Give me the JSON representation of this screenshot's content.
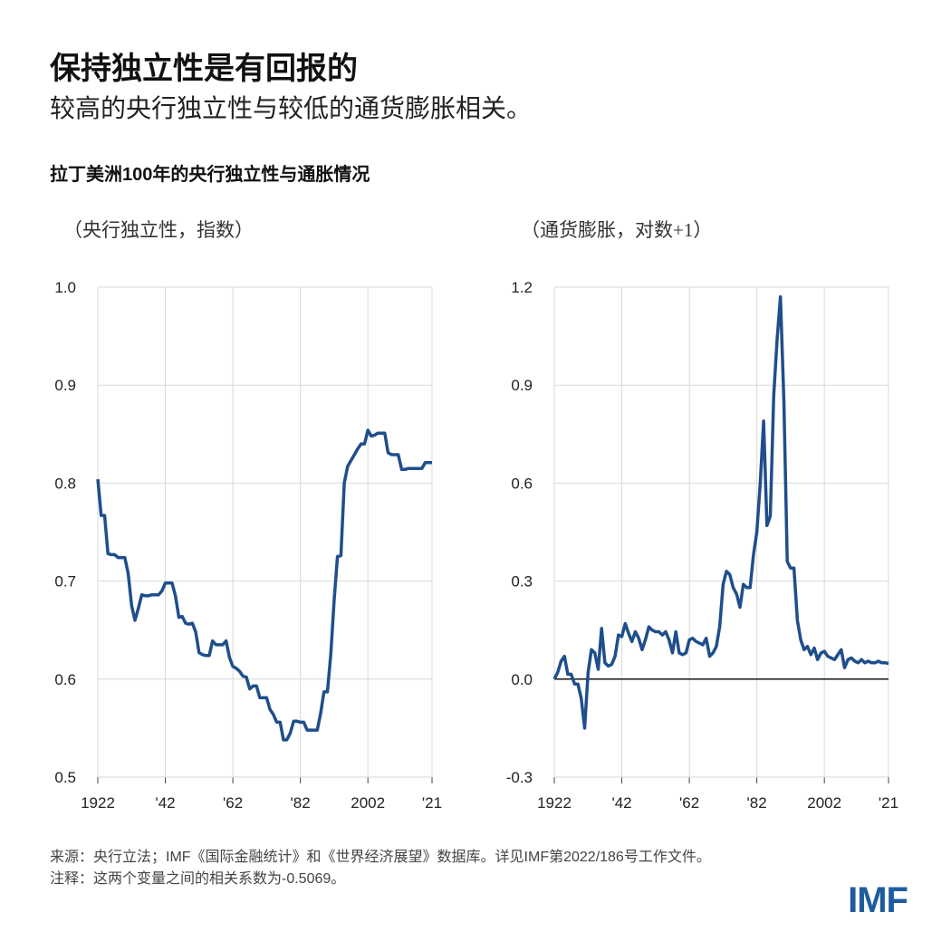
{
  "header": {
    "title": "保持独立性是有回报的",
    "subtitle": "较高的央行独立性与较低的通货膨胀相关。"
  },
  "footer": {
    "source": "来源：央行立法；IMF《国际金融统计》和《世界经济展望》数据库。详见IMF第2022/186号工作文件。",
    "note": "注释：这两个变量之间的相关系数为-0.5069。"
  },
  "logo": "IMF",
  "chart_title": "拉丁美洲100年的央行独立性与通胀情况",
  "colors": {
    "line": "#1f4e8c",
    "grid": "#d9d9d9",
    "zero_line": "#000000"
  },
  "chart_data": [
    {
      "type": "line",
      "ylabel": "（央行独立性，指数）",
      "ylim": [
        0.5,
        1.0
      ],
      "yticks": [
        "1.0",
        "0.9",
        "0.8",
        "0.7",
        "0.6",
        "0.5"
      ],
      "ytick_values": [
        1.0,
        0.9,
        0.8,
        0.7,
        0.6,
        0.5
      ],
      "xlim": [
        1922,
        2021
      ],
      "xticks": [
        "1922",
        "'42",
        "'62",
        "'82",
        "2002",
        "'21"
      ],
      "xtick_values": [
        1922,
        1942,
        1962,
        1982,
        2002,
        2021
      ],
      "grid": true,
      "x_start": 1922,
      "values": [
        0.804,
        0.767,
        0.767,
        0.728,
        0.727,
        0.727,
        0.724,
        0.724,
        0.724,
        0.708,
        0.675,
        0.66,
        0.672,
        0.686,
        0.685,
        0.685,
        0.686,
        0.686,
        0.686,
        0.69,
        0.698,
        0.698,
        0.698,
        0.685,
        0.663,
        0.664,
        0.657,
        0.656,
        0.657,
        0.648,
        0.627,
        0.625,
        0.624,
        0.624,
        0.639,
        0.635,
        0.635,
        0.635,
        0.639,
        0.622,
        0.613,
        0.611,
        0.608,
        0.603,
        0.602,
        0.59,
        0.593,
        0.593,
        0.581,
        0.581,
        0.581,
        0.569,
        0.564,
        0.556,
        0.556,
        0.538,
        0.538,
        0.545,
        0.557,
        0.557,
        0.556,
        0.556,
        0.548,
        0.548,
        0.548,
        0.548,
        0.565,
        0.587,
        0.587,
        0.625,
        0.68,
        0.725,
        0.726,
        0.8,
        0.817,
        0.823,
        0.829,
        0.835,
        0.84,
        0.84,
        0.854,
        0.848,
        0.849,
        0.851,
        0.851,
        0.851,
        0.831,
        0.829,
        0.829,
        0.829,
        0.814,
        0.814,
        0.815,
        0.815,
        0.815,
        0.815,
        0.815,
        0.821,
        0.821,
        0.821
      ]
    },
    {
      "type": "line",
      "ylabel": "（通货膨胀，对数+1）",
      "ylim": [
        -0.3,
        1.2
      ],
      "yticks": [
        "1.2",
        "0.9",
        "0.6",
        "0.3",
        "0.0",
        "-0.3"
      ],
      "ytick_values": [
        1.2,
        0.9,
        0.6,
        0.3,
        0.0,
        -0.3
      ],
      "xlim": [
        1922,
        2021
      ],
      "xticks": [
        "1922",
        "'42",
        "'62",
        "'82",
        "2002",
        "'21"
      ],
      "xtick_values": [
        1922,
        1942,
        1962,
        1982,
        2002,
        2021
      ],
      "grid": true,
      "zero_line": true,
      "x_start": 1922,
      "values": [
        0.0,
        0.02,
        0.055,
        0.07,
        0.015,
        0.015,
        -0.015,
        -0.015,
        -0.06,
        -0.15,
        0.02,
        0.09,
        0.08,
        0.03,
        0.155,
        0.05,
        0.04,
        0.045,
        0.07,
        0.135,
        0.13,
        0.17,
        0.14,
        0.115,
        0.145,
        0.125,
        0.09,
        0.12,
        0.16,
        0.15,
        0.145,
        0.145,
        0.135,
        0.145,
        0.12,
        0.08,
        0.145,
        0.08,
        0.075,
        0.08,
        0.12,
        0.125,
        0.115,
        0.11,
        0.105,
        0.125,
        0.07,
        0.08,
        0.1,
        0.16,
        0.29,
        0.33,
        0.32,
        0.28,
        0.26,
        0.22,
        0.29,
        0.28,
        0.28,
        0.38,
        0.45,
        0.6,
        0.79,
        0.47,
        0.5,
        0.87,
        1.04,
        1.17,
        0.85,
        0.36,
        0.34,
        0.34,
        0.18,
        0.12,
        0.09,
        0.1,
        0.075,
        0.095,
        0.06,
        0.08,
        0.085,
        0.07,
        0.065,
        0.06,
        0.075,
        0.09,
        0.035,
        0.06,
        0.065,
        0.055,
        0.05,
        0.06,
        0.05,
        0.055,
        0.05,
        0.05,
        0.055,
        0.05,
        0.05,
        0.048
      ]
    }
  ]
}
